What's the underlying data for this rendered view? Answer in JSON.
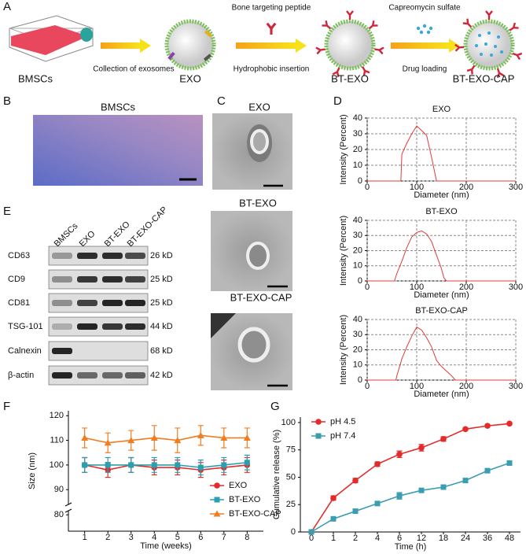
{
  "panel_labels": [
    "A",
    "B",
    "C",
    "D",
    "E",
    "F",
    "G"
  ],
  "schematic": {
    "flask_label": "BMSCs",
    "step1": "Collection of exosomes",
    "exo_label": "EXO",
    "step2_top": "Bone targeting peptide",
    "step2_bottom": "Hydrophobic insertion",
    "bt_exo_label": "BT-EXO",
    "step3_top": "Capreomycin sulfate",
    "step3_bottom": "Drug loading",
    "final_label": "BT-EXO-CAP"
  },
  "micrograph": {
    "title": "BMSCs"
  },
  "tem": {
    "titles": [
      "EXO",
      "BT-EXO",
      "BT-EXO-CAP"
    ]
  },
  "western_blot": {
    "lanes": [
      "BMSCs",
      "EXO",
      "BT-EXO",
      "BT-EXO-CAP"
    ],
    "rows": [
      {
        "protein": "CD63",
        "size": "26 kD"
      },
      {
        "protein": "CD9",
        "size": "25 kD"
      },
      {
        "protein": "CD81",
        "size": "25 kD"
      },
      {
        "protein": "TSG-101",
        "size": "44 kD"
      },
      {
        "protein": "Calnexin",
        "size": "68 kD"
      },
      {
        "protein": "β-actin",
        "size": "42 kD"
      }
    ]
  },
  "chart_data": [
    {
      "type": "line",
      "title": "EXO",
      "x_label": "Diameter (nm)",
      "y_label": "Intensity (Percent)",
      "x": [
        0,
        68,
        70,
        80,
        90,
        100,
        110,
        120,
        130,
        140,
        300
      ],
      "series": [
        {
          "color": "#e03c3c",
          "values": [
            0,
            0,
            17,
            24,
            30,
            35,
            32,
            29,
            15,
            0,
            0
          ]
        }
      ],
      "xlim": [
        0,
        300
      ],
      "xticks": [
        0,
        100,
        200,
        300
      ],
      "ylim": [
        0,
        40
      ],
      "yticks": [
        0,
        10,
        20,
        30,
        40
      ],
      "grid": true
    },
    {
      "type": "line",
      "title": "BT-EXO",
      "x_label": "Diameter (nm)",
      "y_label": "Intensity (Percent)",
      "x": [
        0,
        55,
        60,
        70,
        80,
        90,
        100,
        110,
        120,
        130,
        140,
        150,
        155,
        160,
        300
      ],
      "series": [
        {
          "color": "#e03c3c",
          "values": [
            0,
            0,
            5,
            13,
            22,
            29,
            32,
            33,
            31,
            26,
            17,
            8,
            2,
            0,
            0
          ]
        }
      ],
      "xlim": [
        0,
        300
      ],
      "xticks": [
        0,
        100,
        200,
        300
      ],
      "ylim": [
        0,
        40
      ],
      "yticks": [
        0,
        10,
        20,
        30,
        40
      ],
      "grid": true
    },
    {
      "type": "line",
      "title": "BT-EXO-CAP",
      "x_label": "Diameter (nm)",
      "y_label": "Intensity (Percent)",
      "x": [
        0,
        58,
        60,
        70,
        80,
        90,
        100,
        110,
        120,
        130,
        140,
        150,
        160,
        170,
        178,
        300
      ],
      "series": [
        {
          "color": "#e03c3c",
          "values": [
            0,
            0,
            3,
            14,
            22,
            29,
            35,
            33,
            28,
            22,
            13,
            9,
            6,
            3,
            0,
            0
          ]
        }
      ],
      "xlim": [
        0,
        300
      ],
      "xticks": [
        0,
        100,
        200,
        300
      ],
      "ylim": [
        0,
        40
      ],
      "yticks": [
        0,
        10,
        20,
        30,
        40
      ],
      "grid": true
    },
    {
      "type": "line",
      "x_label": "Time (weeks)",
      "y_label": "Size (nm)",
      "x": [
        1,
        2,
        3,
        4,
        5,
        6,
        7,
        8
      ],
      "xlim": [
        0.3,
        8.7
      ],
      "xticks": [
        1,
        2,
        3,
        4,
        5,
        6,
        7,
        8
      ],
      "ylim": [
        72,
        122
      ],
      "y_break": [
        82,
        84
      ],
      "yticks": [
        80,
        90,
        100,
        110,
        120
      ],
      "grid": false,
      "legend": "lower right",
      "series": [
        {
          "name": "EXO",
          "color": "#e32b2b",
          "marker": "circle",
          "values": [
            100,
            98,
            100,
            99,
            99,
            98,
            99,
            100
          ],
          "errors": [
            3,
            3,
            3,
            3,
            3,
            3,
            3,
            3
          ]
        },
        {
          "name": "BT-EXO",
          "color": "#2a9fb0",
          "marker": "square",
          "values": [
            100,
            100,
            100,
            100,
            100,
            99,
            100,
            101
          ],
          "errors": [
            3,
            3,
            3,
            3,
            3,
            3,
            3,
            3
          ]
        },
        {
          "name": "BT-EXO-CAP",
          "color": "#f07d22",
          "marker": "triangle",
          "values": [
            111,
            109,
            110,
            111,
            110,
            112,
            111,
            111
          ],
          "errors": [
            4,
            4,
            4,
            5,
            5,
            4,
            4,
            4
          ]
        }
      ]
    },
    {
      "type": "line",
      "x_label": "Time (h)",
      "y_label": "Cumulative release (%)",
      "categories": [
        0,
        1,
        2,
        4,
        6,
        12,
        18,
        24,
        36,
        48
      ],
      "ylim": [
        0,
        105
      ],
      "yticks": [
        0,
        25,
        50,
        75,
        100
      ],
      "grid": false,
      "legend": "upper left",
      "series": [
        {
          "name": "pH 4.5",
          "color": "#e32b2b",
          "marker": "circle",
          "values": [
            0,
            31,
            47,
            62,
            71,
            77,
            85,
            94,
            97,
            99
          ],
          "errors": [
            0,
            2,
            2,
            2,
            3,
            3,
            2,
            1,
            1,
            1
          ]
        },
        {
          "name": "pH 7.4",
          "color": "#3a9db0",
          "marker": "square",
          "values": [
            0,
            12,
            19,
            26,
            33,
            38,
            41,
            47,
            56,
            63
          ],
          "errors": [
            0,
            1,
            1,
            1,
            3,
            1,
            2,
            2,
            1,
            2
          ]
        }
      ]
    }
  ]
}
